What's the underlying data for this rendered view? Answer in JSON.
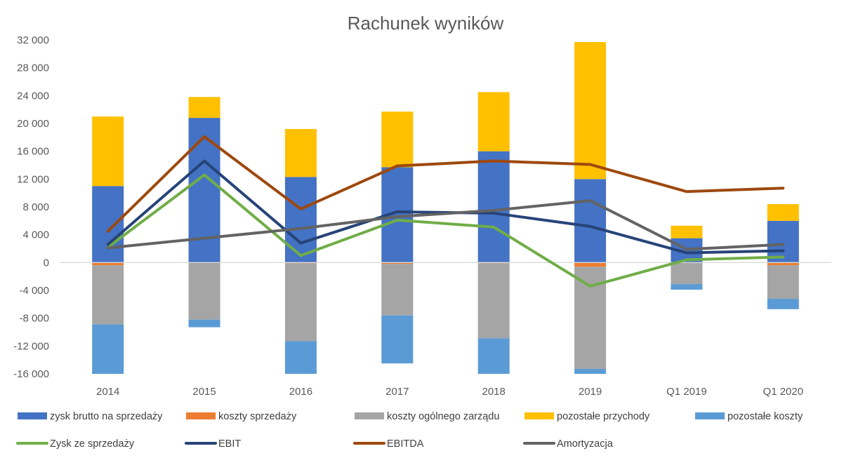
{
  "chart_data": {
    "type": "bar",
    "title": "Rachunek wyników",
    "categories": [
      "2014",
      "2015",
      "2016",
      "2017",
      "2018",
      "2019",
      "Q1 2019",
      "Q1 2020"
    ],
    "ylim": [
      -16000,
      32000
    ],
    "yticks": [
      32000,
      28000,
      24000,
      20000,
      16000,
      12000,
      8000,
      4000,
      0,
      -4000,
      -8000,
      -12000,
      -16000
    ],
    "ytick_labels": [
      "32 000",
      "28 000",
      "24 000",
      "20 000",
      "16 000",
      "12 000",
      "8 000",
      "4 000",
      "0",
      "-4 000",
      "-8 000",
      "-12 000",
      "-16 000"
    ],
    "grid": false,
    "legend_position": "bottom",
    "bar_series_positive": [
      {
        "name": "zysk brutto na sprzedaży",
        "color": "#4472C4",
        "values": [
          11000,
          20800,
          12300,
          13700,
          16000,
          12000,
          3500,
          6000
        ]
      },
      {
        "name": "pozostałe przychody",
        "color": "#FFC000",
        "values": [
          10000,
          3000,
          6900,
          8000,
          8500,
          19700,
          1800,
          2400
        ]
      }
    ],
    "bar_series_negative": [
      {
        "name": "koszty sprzedaży",
        "color": "#ED7D31",
        "values": [
          -400,
          0,
          -100,
          -200,
          -100,
          -600,
          0,
          -400
        ]
      },
      {
        "name": "koszty ogólnego zarządu",
        "color": "#A5A5A5",
        "values": [
          -8500,
          -8200,
          -11200,
          -7400,
          -10800,
          -14700,
          -3100,
          -4800
        ]
      },
      {
        "name": "pozostałe koszty",
        "color": "#5B9BD5",
        "values": [
          -7100,
          -1100,
          -4700,
          -6900,
          -5100,
          -700,
          -800,
          -1500
        ]
      }
    ],
    "line_series": [
      {
        "name": "Zysk ze sprzedaży",
        "color": "#70AD47",
        "values": [
          2200,
          12600,
          1000,
          6100,
          5100,
          -3400,
          400,
          800
        ]
      },
      {
        "name": "EBIT",
        "color": "#264478",
        "values": [
          2600,
          14600,
          2800,
          7300,
          7100,
          5200,
          1400,
          1700
        ]
      },
      {
        "name": "EBITDA",
        "color": "#9E480E",
        "values": [
          4500,
          18100,
          7700,
          13900,
          14600,
          14100,
          10200,
          10700
        ]
      },
      {
        "name": "Amortyzacja",
        "color": "#636363",
        "values": [
          2100,
          3500,
          4900,
          6600,
          7500,
          8900,
          1900,
          2600
        ]
      }
    ],
    "legend_rows": [
      [
        "zysk brutto na sprzedaży",
        "koszty sprzedaży",
        "koszty ogólnego zarządu",
        "pozostałe przychody",
        "pozostałe koszty"
      ],
      [
        "Zysk ze sprzedaży",
        "EBIT",
        "EBITDA",
        "Amortyzacja"
      ]
    ]
  }
}
